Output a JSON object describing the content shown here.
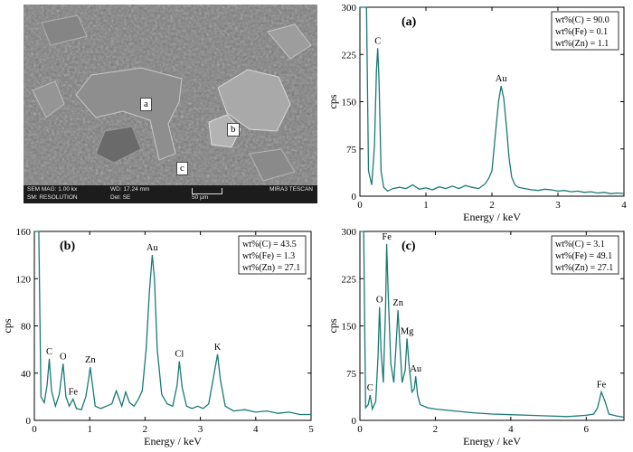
{
  "sem": {
    "mag": "SEM MAG: 1.00 kx",
    "wd": "WD: 17.24 mm",
    "brand": "MIRA3 TESCAN",
    "mode": "SM: RESOLUTION",
    "det": "Det: SE",
    "scale": "50 µm",
    "labels": [
      "a",
      "b",
      "c"
    ]
  },
  "chart_data": [
    {
      "type": "line",
      "panel": "(a)",
      "xlabel": "Energy / keV",
      "ylabel": "cps",
      "xlim": [
        0,
        4
      ],
      "ylim": [
        0,
        300
      ],
      "xticks": [
        0,
        1,
        2,
        3,
        4
      ],
      "yticks": [
        0,
        75,
        150,
        225,
        300
      ],
      "legend": [
        "wt%(C) = 90.0",
        "wt%(Fe) = 0.1",
        "wt%(Zn) = 1.1"
      ],
      "peaks": [
        {
          "label": "C",
          "x": 0.27,
          "y": 235
        },
        {
          "label": "Au",
          "x": 2.14,
          "y": 175
        }
      ],
      "x": [
        0.0,
        0.05,
        0.1,
        0.13,
        0.18,
        0.22,
        0.25,
        0.27,
        0.29,
        0.32,
        0.36,
        0.42,
        0.5,
        0.6,
        0.7,
        0.8,
        0.9,
        1.0,
        1.1,
        1.2,
        1.3,
        1.4,
        1.5,
        1.6,
        1.7,
        1.8,
        1.9,
        1.95,
        2.0,
        2.05,
        2.1,
        2.14,
        2.18,
        2.22,
        2.26,
        2.3,
        2.35,
        2.4,
        2.5,
        2.6,
        2.7,
        2.8,
        2.9,
        3.0,
        3.1,
        3.2,
        3.3,
        3.4,
        3.5,
        3.6,
        3.7,
        3.8,
        3.9,
        4.0
      ],
      "y": [
        300,
        300,
        300,
        40,
        18,
        80,
        200,
        235,
        180,
        40,
        14,
        8,
        12,
        14,
        12,
        18,
        11,
        13,
        10,
        15,
        12,
        16,
        12,
        17,
        14,
        12,
        20,
        28,
        40,
        95,
        150,
        175,
        155,
        110,
        60,
        30,
        18,
        14,
        12,
        10,
        9,
        11,
        10,
        8,
        9,
        7,
        8,
        6,
        7,
        5,
        6,
        4,
        5,
        4
      ]
    },
    {
      "type": "line",
      "panel": "(b)",
      "xlabel": "Energy / keV",
      "ylabel": "cps",
      "xlim": [
        0,
        5
      ],
      "ylim": [
        0,
        160
      ],
      "xticks": [
        0,
        1,
        2,
        3,
        4,
        5
      ],
      "yticks": [
        0,
        40,
        80,
        120,
        160
      ],
      "legend": [
        "wt%(C) = 43.5",
        "wt%(Fe) = 1.3",
        "wt%(Zn) = 27.1"
      ],
      "peaks": [
        {
          "label": "C",
          "x": 0.27,
          "y": 52
        },
        {
          "label": "O",
          "x": 0.52,
          "y": 48
        },
        {
          "label": "Fe",
          "x": 0.7,
          "y": 18
        },
        {
          "label": "Zn",
          "x": 1.01,
          "y": 45
        },
        {
          "label": "Au",
          "x": 2.13,
          "y": 140
        },
        {
          "label": "Cl",
          "x": 2.62,
          "y": 50
        },
        {
          "label": "K",
          "x": 3.31,
          "y": 56
        }
      ],
      "x": [
        0.0,
        0.04,
        0.08,
        0.12,
        0.18,
        0.23,
        0.27,
        0.31,
        0.38,
        0.45,
        0.52,
        0.57,
        0.63,
        0.7,
        0.76,
        0.85,
        0.93,
        0.98,
        1.01,
        1.05,
        1.1,
        1.2,
        1.3,
        1.4,
        1.48,
        1.52,
        1.58,
        1.65,
        1.72,
        1.8,
        1.88,
        1.95,
        2.02,
        2.08,
        2.13,
        2.17,
        2.22,
        2.3,
        2.4,
        2.5,
        2.58,
        2.62,
        2.67,
        2.75,
        2.85,
        2.95,
        3.05,
        3.15,
        3.25,
        3.31,
        3.36,
        3.45,
        3.6,
        3.8,
        4.0,
        4.2,
        4.4,
        4.6,
        4.8,
        5.0
      ],
      "y": [
        160,
        160,
        160,
        20,
        15,
        30,
        52,
        25,
        12,
        22,
        48,
        20,
        12,
        18,
        10,
        9,
        20,
        35,
        45,
        30,
        12,
        10,
        12,
        14,
        25,
        20,
        12,
        24,
        15,
        12,
        18,
        25,
        60,
        110,
        140,
        120,
        60,
        22,
        14,
        12,
        30,
        50,
        28,
        12,
        10,
        12,
        10,
        14,
        40,
        56,
        35,
        12,
        8,
        9,
        7,
        8,
        6,
        7,
        5,
        5
      ]
    },
    {
      "type": "line",
      "panel": "(c)",
      "xlabel": "Energy / keV",
      "ylabel": "cps",
      "xlim": [
        0,
        7
      ],
      "ylim": [
        0,
        300
      ],
      "xticks": [
        0,
        2,
        4,
        6
      ],
      "yticks": [
        0,
        75,
        150,
        225,
        300
      ],
      "legend": [
        "wt%(C) = 3.1",
        "wt%(Fe) = 49.1",
        "wt%(Zn) = 27.1"
      ],
      "peaks": [
        {
          "label": "C",
          "x": 0.27,
          "y": 40
        },
        {
          "label": "O",
          "x": 0.52,
          "y": 180
        },
        {
          "label": "Fe",
          "x": 0.71,
          "y": 280
        },
        {
          "label": "Zn",
          "x": 1.01,
          "y": 175
        },
        {
          "label": "Mg",
          "x": 1.25,
          "y": 130
        },
        {
          "label": "Au",
          "x": 1.48,
          "y": 70
        },
        {
          "label": "Fe",
          "x": 6.4,
          "y": 45
        }
      ],
      "x": [
        0.0,
        0.05,
        0.1,
        0.15,
        0.22,
        0.27,
        0.33,
        0.42,
        0.48,
        0.52,
        0.56,
        0.62,
        0.68,
        0.71,
        0.75,
        0.82,
        0.9,
        0.96,
        1.01,
        1.06,
        1.12,
        1.2,
        1.25,
        1.3,
        1.38,
        1.44,
        1.48,
        1.53,
        1.6,
        1.8,
        2.0,
        2.5,
        3.0,
        3.5,
        4.0,
        4.5,
        5.0,
        5.5,
        6.0,
        6.2,
        6.3,
        6.4,
        6.5,
        6.6,
        6.8,
        7.0
      ],
      "y": [
        300,
        300,
        300,
        20,
        25,
        40,
        18,
        30,
        100,
        180,
        110,
        60,
        180,
        280,
        200,
        90,
        60,
        120,
        175,
        120,
        60,
        80,
        130,
        90,
        45,
        50,
        70,
        40,
        25,
        20,
        18,
        15,
        12,
        10,
        9,
        8,
        7,
        6,
        8,
        10,
        20,
        45,
        30,
        10,
        7,
        5
      ]
    }
  ]
}
